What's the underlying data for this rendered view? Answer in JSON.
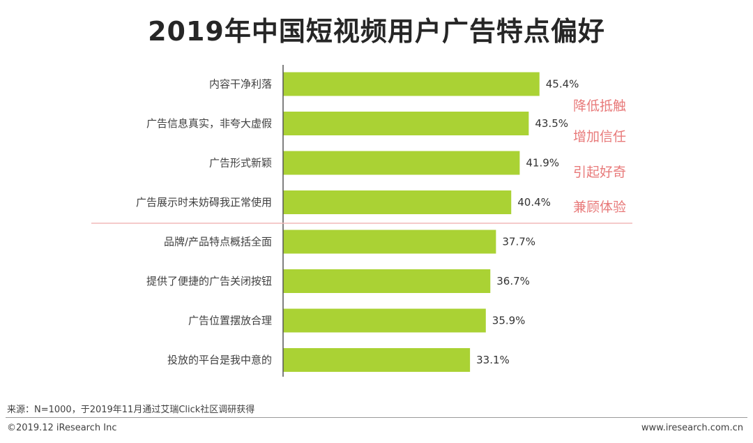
{
  "title": "2019年中国短视频用户广告特点偏好",
  "chart_data": {
    "type": "bar",
    "orientation": "horizontal",
    "categories": [
      "内容干净利落",
      "广告信息真实，非夸大虚假",
      "广告形式新颖",
      "广告展示时未妨碍我正常使用",
      "品牌/产品特点概括全面",
      "提供了便捷的广告关闭按钮",
      "广告位置摆放合理",
      "投放的平台是我中意的"
    ],
    "values": [
      45.4,
      43.5,
      41.9,
      40.4,
      37.7,
      36.7,
      35.9,
      33.1
    ],
    "value_labels": [
      "45.4%",
      "43.5%",
      "41.9%",
      "40.4%",
      "37.7%",
      "36.7%",
      "35.9%",
      "33.1%"
    ],
    "annotations": [
      "降低抵触",
      "增加信任",
      "引起好奇",
      "兼顾体验"
    ],
    "bar_color": "#aad234",
    "annotation_color": "#e87a7a",
    "divider_color": "#f2b8b8"
  },
  "source": "来源：N=1000，于2019年11月通过艾瑞Click社区调研获得",
  "copyright": "©2019.12 iResearch Inc",
  "website": "www.iresearch.com.cn"
}
